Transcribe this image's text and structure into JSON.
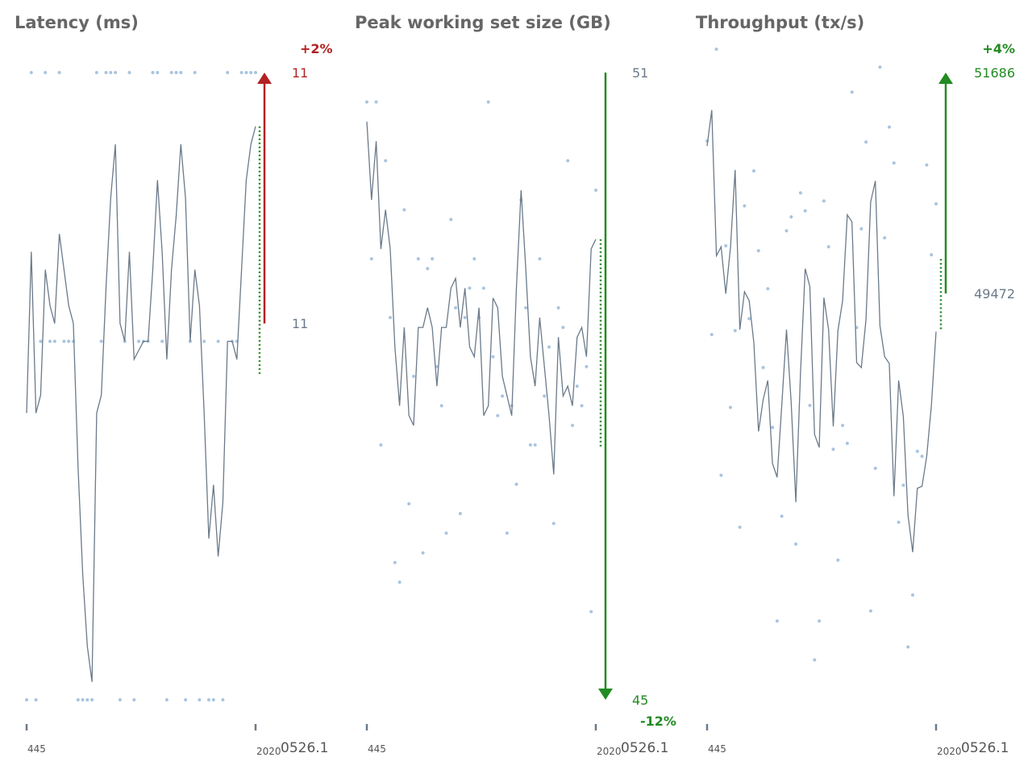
{
  "colors": {
    "line": "#6b7a8a",
    "dots": "#a8c4e0",
    "up_bad": "#b22222",
    "good": "#228b22",
    "neutral_label": "#6b7a8a",
    "title": "#666666"
  },
  "chart_data": [
    {
      "type": "line",
      "title": "Latency (ms)",
      "x_tick_labels": [
        "445",
        "2020",
        "0526.1"
      ],
      "ylim": [
        10.79,
        11.14
      ],
      "series": [
        {
          "values": [
            10.95,
            11.04,
            10.95,
            10.96,
            11.03,
            11.01,
            11.0,
            11.05,
            11.03,
            11.01,
            11.0,
            10.92,
            10.86,
            10.82,
            10.8,
            10.95,
            10.96,
            11.02,
            11.07,
            11.1,
            11.0,
            10.99,
            11.04,
            10.98,
            10.985,
            10.99,
            10.99,
            11.03,
            11.08,
            11.04,
            10.98,
            11.03,
            11.06,
            11.1,
            11.07,
            10.99,
            11.03,
            11.01,
            10.95,
            10.88,
            10.91,
            10.87,
            10.9,
            10.99,
            10.99,
            10.98,
            11.03,
            11.08,
            11.1,
            11.11
          ],
          "points": [
            10.79,
            11.14,
            10.79,
            10.99,
            11.14,
            10.99,
            10.99,
            11.14,
            10.99,
            10.99,
            10.99,
            10.79,
            10.79,
            10.79,
            10.79,
            11.14,
            10.99,
            11.14,
            11.14,
            11.14,
            10.79,
            10.99,
            11.14,
            10.79,
            10.99,
            10.99,
            10.99,
            11.14,
            11.14,
            10.99,
            10.79,
            11.14,
            11.14,
            11.14,
            10.79,
            10.99,
            11.14,
            10.79,
            10.99,
            10.79,
            10.79,
            10.99,
            10.79,
            11.14,
            10.99,
            10.99,
            11.14,
            11.14,
            11.14,
            11.14
          ]
        }
      ],
      "annotation": {
        "start_label": "11",
        "end_label": "11",
        "start_value": 11.0,
        "end_value": 11.14,
        "change_label": "+2%",
        "direction": "up"
      }
    },
    {
      "type": "line",
      "title": "Peak working set size (GB)",
      "x_tick_labels": [
        "445",
        "2020",
        "0526.1"
      ],
      "ylim": [
        44.6,
        51.0
      ],
      "series": [
        {
          "values": [
            50.5,
            49.7,
            50.3,
            49.2,
            49.6,
            49.2,
            48.2,
            47.6,
            48.4,
            47.5,
            47.4,
            48.4,
            48.4,
            48.6,
            48.4,
            47.8,
            48.4,
            48.4,
            48.8,
            48.9,
            48.4,
            48.8,
            48.2,
            48.1,
            48.6,
            47.5,
            47.6,
            48.7,
            48.6,
            47.9,
            47.7,
            47.5,
            48.8,
            49.8,
            49.0,
            48.1,
            47.8,
            48.5,
            48.0,
            47.5,
            46.9,
            48.3,
            47.7,
            47.8,
            47.6,
            48.3,
            48.4,
            48.1,
            49.2,
            49.3
          ],
          "points": [
            50.7,
            49.1,
            50.7,
            47.2,
            50.1,
            48.5,
            46.0,
            45.8,
            49.6,
            46.6,
            47.9,
            49.1,
            46.1,
            49.0,
            49.1,
            48.0,
            47.6,
            46.3,
            49.5,
            48.6,
            46.5,
            48.5,
            48.8,
            49.1,
            48.5,
            48.8,
            50.7,
            48.1,
            47.5,
            47.7,
            46.3,
            47.6,
            46.8,
            49.7,
            48.6,
            47.2,
            47.2,
            49.1,
            47.7,
            48.2,
            46.4,
            48.6,
            48.4,
            50.1,
            47.4,
            47.8,
            47.6,
            48.0,
            45.5,
            49.8
          ]
        }
      ],
      "annotation": {
        "start_label": "51",
        "end_label": "45",
        "start_value": 51.0,
        "end_value": 44.6,
        "change_label": "-12%",
        "direction": "down"
      }
    },
    {
      "type": "line",
      "title": "Throughput (tx/s)",
      "x_tick_labels": [
        "445",
        "2020",
        "0526.1"
      ],
      "ylim": [
        45400,
        51686
      ],
      "series": [
        {
          "values": [
            50950,
            51310,
            49850,
            49940,
            49470,
            49930,
            50710,
            49110,
            49490,
            49400,
            48980,
            48090,
            48410,
            48600,
            47770,
            47630,
            48360,
            49110,
            48380,
            47380,
            48680,
            49720,
            49540,
            48060,
            47930,
            49430,
            49110,
            48140,
            49100,
            49400,
            50260,
            50190,
            48780,
            48730,
            49210,
            50390,
            50600,
            49150,
            48840,
            48770,
            47440,
            48600,
            48240,
            47250,
            46880,
            47520,
            47540,
            47840,
            48350,
            49090
          ],
          "points": [
            51000,
            49060,
            51920,
            47650,
            49950,
            48330,
            49100,
            47130,
            50350,
            49220,
            50700,
            49900,
            48730,
            49520,
            48130,
            46190,
            47240,
            50100,
            50240,
            46960,
            50480,
            50300,
            48350,
            45800,
            46190,
            50400,
            49940,
            47910,
            46800,
            48150,
            47970,
            51490,
            49130,
            50120,
            50990,
            46290,
            47720,
            51740,
            50030,
            51140,
            50780,
            47180,
            47550,
            45930,
            46450,
            47890,
            47840,
            50760,
            49860,
            50370
          ]
        }
      ],
      "annotation": {
        "start_label": "49472",
        "end_label": "51686",
        "start_value": 49472,
        "end_value": 51686,
        "change_label": "+4%",
        "direction": "up"
      }
    }
  ]
}
